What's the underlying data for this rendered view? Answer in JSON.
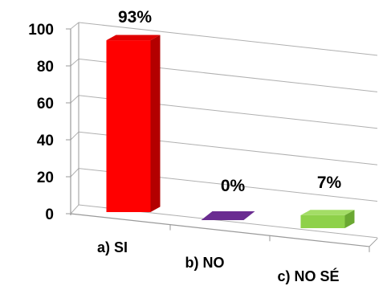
{
  "chart_data": {
    "type": "bar",
    "style": "3d-column",
    "categories": [
      "a) SI",
      "b) NO",
      "c) NO SÉ"
    ],
    "values": [
      93,
      0,
      7
    ],
    "data_labels": [
      "93%",
      "0%",
      "7%"
    ],
    "y_ticks": [
      "0",
      "20",
      "40",
      "60",
      "80",
      "100"
    ],
    "ylim": [
      0,
      100
    ],
    "grid": true,
    "legend": "none",
    "colors": {
      "bars": [
        "#ff0000",
        "#6a2c91",
        "#8ed14a"
      ],
      "bars_side": [
        "#b30000",
        "#4a1d66",
        "#6aa832"
      ],
      "bars_top": [
        "#e00000",
        "#7d3aa6",
        "#a3dd66"
      ],
      "grid": "#b0b0b0",
      "axis": "#9a9a9a"
    }
  }
}
